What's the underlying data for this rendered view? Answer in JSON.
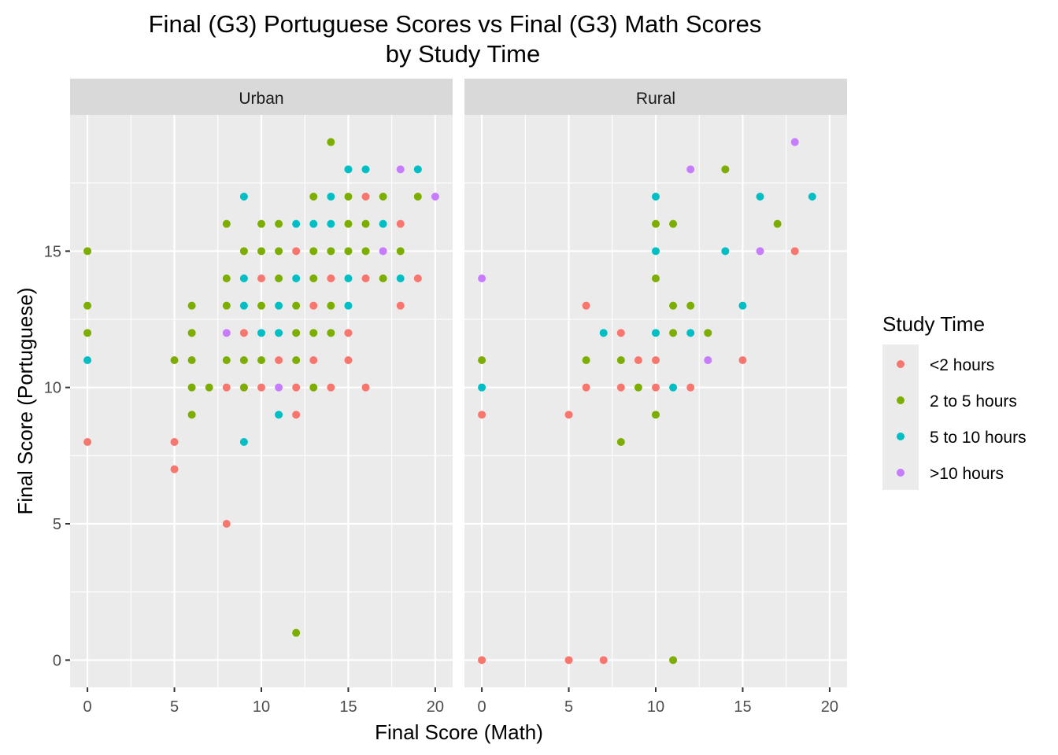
{
  "chart_data": {
    "type": "scatter",
    "title": "Final (G3) Portuguese Scores vs Final (G3) Math Scores",
    "subtitle": "by Study Time",
    "xlabel": "Final Score (Math)",
    "ylabel": "Final Score (Portuguese)",
    "xlim": [
      -1,
      21
    ],
    "ylim": [
      -1,
      20
    ],
    "xticks": [
      0,
      5,
      10,
      15,
      20
    ],
    "yticks": [
      0,
      5,
      10,
      15
    ],
    "legend": {
      "title": "Study Time",
      "position": "right",
      "entries": [
        {
          "label": "<2 hours",
          "color": "#F8766D"
        },
        {
          "label": "2 to 5 hours",
          "color": "#7CAE00"
        },
        {
          "label": "5 to 10 hours",
          "color": "#00BFC4"
        },
        {
          "label": ">10 hours",
          "color": "#C77CFF"
        }
      ]
    },
    "panels": [
      {
        "name": "Urban",
        "series": [
          {
            "name": "<2 hours",
            "points": [
              [
                0,
                8
              ],
              [
                5,
                8
              ],
              [
                5,
                7
              ],
              [
                8,
                5
              ],
              [
                8,
                10
              ],
              [
                9,
                12
              ],
              [
                9,
                10
              ],
              [
                10,
                14
              ],
              [
                10,
                10
              ],
              [
                11,
                11
              ],
              [
                12,
                15
              ],
              [
                12,
                10
              ],
              [
                12,
                9
              ],
              [
                13,
                13
              ],
              [
                13,
                11
              ],
              [
                14,
                14
              ],
              [
                14,
                10
              ],
              [
                15,
                12
              ],
              [
                15,
                11
              ],
              [
                16,
                17
              ],
              [
                16,
                14
              ],
              [
                16,
                10
              ],
              [
                18,
                16
              ],
              [
                18,
                13
              ],
              [
                19,
                14
              ]
            ]
          },
          {
            "name": "2 to 5 hours",
            "points": [
              [
                0,
                15
              ],
              [
                0,
                13
              ],
              [
                0,
                12
              ],
              [
                5,
                11
              ],
              [
                6,
                13
              ],
              [
                6,
                12
              ],
              [
                6,
                11
              ],
              [
                6,
                10
              ],
              [
                6,
                9
              ],
              [
                7,
                10
              ],
              [
                8,
                16
              ],
              [
                8,
                14
              ],
              [
                8,
                13
              ],
              [
                8,
                11
              ],
              [
                9,
                15
              ],
              [
                9,
                11
              ],
              [
                9,
                10
              ],
              [
                10,
                16
              ],
              [
                10,
                15
              ],
              [
                10,
                13
              ],
              [
                10,
                11
              ],
              [
                11,
                16
              ],
              [
                11,
                15
              ],
              [
                11,
                14
              ],
              [
                12,
                13
              ],
              [
                12,
                12
              ],
              [
                12,
                11
              ],
              [
                12,
                1
              ],
              [
                13,
                17
              ],
              [
                13,
                15
              ],
              [
                13,
                14
              ],
              [
                13,
                12
              ],
              [
                13,
                10
              ],
              [
                14,
                19
              ],
              [
                14,
                15
              ],
              [
                14,
                13
              ],
              [
                14,
                12
              ],
              [
                15,
                17
              ],
              [
                15,
                16
              ],
              [
                15,
                15
              ],
              [
                16,
                16
              ],
              [
                16,
                15
              ],
              [
                17,
                17
              ],
              [
                17,
                14
              ],
              [
                18,
                15
              ],
              [
                19,
                17
              ]
            ]
          },
          {
            "name": "5 to 10 hours",
            "points": [
              [
                0,
                11
              ],
              [
                9,
                17
              ],
              [
                9,
                14
              ],
              [
                9,
                13
              ],
              [
                9,
                8
              ],
              [
                10,
                12
              ],
              [
                11,
                13
              ],
              [
                11,
                12
              ],
              [
                11,
                9
              ],
              [
                12,
                16
              ],
              [
                12,
                14
              ],
              [
                13,
                16
              ],
              [
                14,
                17
              ],
              [
                14,
                16
              ],
              [
                15,
                18
              ],
              [
                15,
                14
              ],
              [
                15,
                13
              ],
              [
                16,
                18
              ],
              [
                17,
                16
              ],
              [
                18,
                14
              ],
              [
                19,
                18
              ]
            ]
          },
          {
            "name": ">10 hours",
            "points": [
              [
                8,
                12
              ],
              [
                11,
                10
              ],
              [
                17,
                15
              ],
              [
                18,
                18
              ],
              [
                20,
                17
              ]
            ]
          }
        ]
      },
      {
        "name": "Rural",
        "series": [
          {
            "name": "<2 hours",
            "points": [
              [
                0,
                9
              ],
              [
                0,
                0
              ],
              [
                5,
                9
              ],
              [
                5,
                0
              ],
              [
                6,
                13
              ],
              [
                6,
                10
              ],
              [
                7,
                0
              ],
              [
                8,
                12
              ],
              [
                8,
                10
              ],
              [
                9,
                11
              ],
              [
                10,
                11
              ],
              [
                10,
                10
              ],
              [
                12,
                10
              ],
              [
                15,
                11
              ],
              [
                18,
                15
              ]
            ]
          },
          {
            "name": "2 to 5 hours",
            "points": [
              [
                0,
                11
              ],
              [
                6,
                11
              ],
              [
                8,
                11
              ],
              [
                8,
                8
              ],
              [
                9,
                10
              ],
              [
                10,
                16
              ],
              [
                10,
                14
              ],
              [
                10,
                9
              ],
              [
                11,
                16
              ],
              [
                11,
                13
              ],
              [
                11,
                12
              ],
              [
                11,
                0
              ],
              [
                12,
                13
              ],
              [
                13,
                12
              ],
              [
                14,
                18
              ],
              [
                17,
                16
              ]
            ]
          },
          {
            "name": "5 to 10 hours",
            "points": [
              [
                0,
                10
              ],
              [
                7,
                12
              ],
              [
                10,
                17
              ],
              [
                10,
                15
              ],
              [
                10,
                12
              ],
              [
                11,
                10
              ],
              [
                12,
                12
              ],
              [
                14,
                15
              ],
              [
                15,
                13
              ],
              [
                16,
                17
              ],
              [
                19,
                17
              ]
            ]
          },
          {
            "name": ">10 hours",
            "points": [
              [
                0,
                14
              ],
              [
                12,
                18
              ],
              [
                13,
                11
              ],
              [
                16,
                15
              ],
              [
                18,
                19
              ]
            ]
          }
        ]
      }
    ]
  }
}
